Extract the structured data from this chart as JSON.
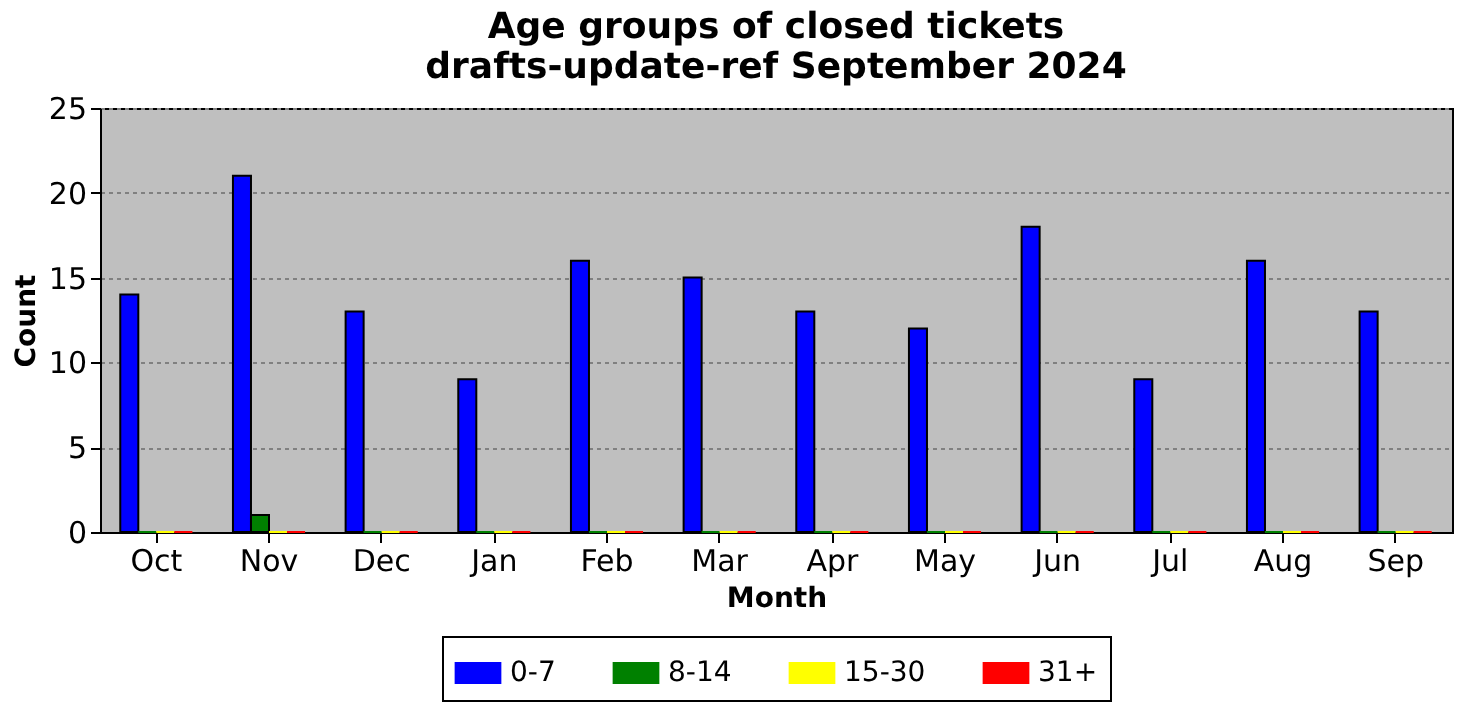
{
  "chart_data": {
    "type": "bar",
    "title": "Age groups of closed tickets",
    "subtitle": "drafts-update-ref September 2024",
    "xlabel": "Month",
    "ylabel": "Count",
    "categories": [
      "Oct",
      "Nov",
      "Dec",
      "Jan",
      "Feb",
      "Mar",
      "Apr",
      "May",
      "Jun",
      "Jul",
      "Aug",
      "Sep"
    ],
    "series": [
      {
        "name": "0-7",
        "color": "#0000ff",
        "values": [
          14,
          21,
          13,
          9,
          16,
          15,
          13,
          12,
          18,
          9,
          16,
          13
        ]
      },
      {
        "name": "8-14",
        "color": "#008000",
        "values": [
          0,
          1,
          0,
          0,
          0,
          0,
          0,
          0,
          0,
          0,
          0,
          0
        ]
      },
      {
        "name": "15-30",
        "color": "#ffff00",
        "values": [
          0,
          0,
          0,
          0,
          0,
          0,
          0,
          0,
          0,
          0,
          0,
          0
        ]
      },
      {
        "name": "31+",
        "color": "#ff0000",
        "values": [
          0,
          0,
          0,
          0,
          0,
          0,
          0,
          0,
          0,
          0,
          0,
          0
        ]
      }
    ],
    "ylim": [
      0,
      25
    ],
    "yticks": [
      0,
      5,
      10,
      15,
      20,
      25
    ],
    "grid": "y",
    "legend": "bottom"
  }
}
